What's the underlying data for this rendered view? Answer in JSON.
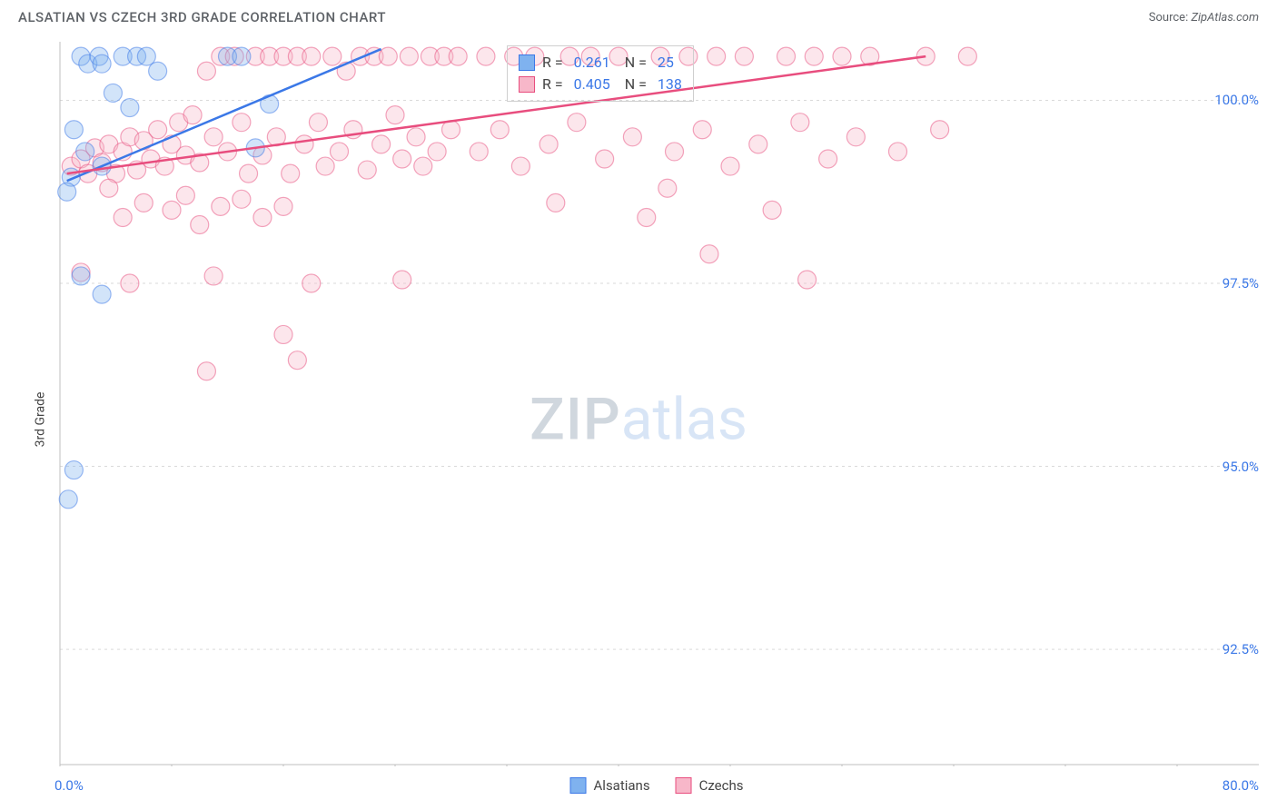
{
  "header": {
    "title": "ALSATIAN VS CZECH 3RD GRADE CORRELATION CHART",
    "source_prefix": "Source: ",
    "source_link": "ZipAtlas.com"
  },
  "ylabel": "3rd Grade",
  "watermark": {
    "part1": "ZIP",
    "part2": "atlas"
  },
  "chart": {
    "type": "scatter",
    "xlim": [
      0,
      80
    ],
    "ylim": [
      91.0,
      100.8
    ],
    "x_left_label": "0.0%",
    "x_right_label": "80.0%",
    "xtick_positions": [
      0,
      8,
      16,
      24,
      32,
      40,
      48,
      56,
      64,
      72,
      80
    ],
    "ytick_labels": [
      {
        "value": 100.0,
        "label": "100.0%"
      },
      {
        "value": 97.5,
        "label": "97.5%"
      },
      {
        "value": 95.0,
        "label": "95.0%"
      },
      {
        "value": 92.5,
        "label": "92.5%"
      }
    ],
    "grid_color": "#d9d9d9",
    "axis_color": "#bfbfbf",
    "background_color": "#ffffff",
    "marker_radius": 10,
    "marker_opacity": 0.35,
    "series": [
      {
        "name": "Alsatians",
        "color_fill": "#7fb2ef",
        "color_stroke": "#3b78e7",
        "trend": {
          "x1": 0.5,
          "y1": 98.9,
          "x2": 23,
          "y2": 100.7
        },
        "points": [
          [
            1.5,
            100.6
          ],
          [
            2.0,
            100.5
          ],
          [
            2.8,
            100.6
          ],
          [
            3.0,
            100.5
          ],
          [
            3.8,
            100.1
          ],
          [
            4.5,
            100.6
          ],
          [
            5.5,
            100.6
          ],
          [
            5.0,
            99.9
          ],
          [
            6.2,
            100.6
          ],
          [
            7.0,
            100.4
          ],
          [
            1.0,
            99.6
          ],
          [
            1.8,
            99.3
          ],
          [
            3.0,
            99.1
          ],
          [
            0.8,
            98.95
          ],
          [
            0.5,
            98.75
          ],
          [
            1.5,
            97.6
          ],
          [
            3.0,
            97.35
          ],
          [
            1.0,
            94.95
          ],
          [
            0.6,
            94.55
          ],
          [
            12.0,
            100.6
          ],
          [
            13.0,
            100.6
          ],
          [
            14.0,
            99.35
          ],
          [
            15.0,
            99.95
          ]
        ]
      },
      {
        "name": "Czechs",
        "color_fill": "#f7b7c9",
        "color_stroke": "#e84d7e",
        "trend": {
          "x1": 0.5,
          "y1": 99.0,
          "x2": 62,
          "y2": 100.6
        },
        "points": [
          [
            0.8,
            99.1
          ],
          [
            1.5,
            99.2
          ],
          [
            2.0,
            99.0
          ],
          [
            2.5,
            99.35
          ],
          [
            3.0,
            99.15
          ],
          [
            3.5,
            99.4
          ],
          [
            4.0,
            99.0
          ],
          [
            4.5,
            99.3
          ],
          [
            5.0,
            99.5
          ],
          [
            5.5,
            99.05
          ],
          [
            6.0,
            99.45
          ],
          [
            6.5,
            99.2
          ],
          [
            7.0,
            99.6
          ],
          [
            7.5,
            99.1
          ],
          [
            8.0,
            99.4
          ],
          [
            8.5,
            99.7
          ],
          [
            9.0,
            99.25
          ],
          [
            9.5,
            99.8
          ],
          [
            10.0,
            99.15
          ],
          [
            10.5,
            100.4
          ],
          [
            11.0,
            99.5
          ],
          [
            11.5,
            100.6
          ],
          [
            12.0,
            99.3
          ],
          [
            12.5,
            100.6
          ],
          [
            13.0,
            99.7
          ],
          [
            13.5,
            99.0
          ],
          [
            14.0,
            100.6
          ],
          [
            14.5,
            99.25
          ],
          [
            15.0,
            100.6
          ],
          [
            15.5,
            99.5
          ],
          [
            16.0,
            100.6
          ],
          [
            16.5,
            99.0
          ],
          [
            17.0,
            100.6
          ],
          [
            17.5,
            99.4
          ],
          [
            18.0,
            100.6
          ],
          [
            18.5,
            99.7
          ],
          [
            19.0,
            99.1
          ],
          [
            19.5,
            100.6
          ],
          [
            20.0,
            99.3
          ],
          [
            20.5,
            100.4
          ],
          [
            21.0,
            99.6
          ],
          [
            21.5,
            100.6
          ],
          [
            22.0,
            99.05
          ],
          [
            22.5,
            100.6
          ],
          [
            23.0,
            99.4
          ],
          [
            23.5,
            100.6
          ],
          [
            24.0,
            99.8
          ],
          [
            24.5,
            99.2
          ],
          [
            25.0,
            100.6
          ],
          [
            25.5,
            99.5
          ],
          [
            26.0,
            99.1
          ],
          [
            26.5,
            100.6
          ],
          [
            27.0,
            99.3
          ],
          [
            27.5,
            100.6
          ],
          [
            28.0,
            99.6
          ],
          [
            28.5,
            100.6
          ],
          [
            1.5,
            97.65
          ],
          [
            3.5,
            98.8
          ],
          [
            4.5,
            98.4
          ],
          [
            6.0,
            98.6
          ],
          [
            8.0,
            98.5
          ],
          [
            9.0,
            98.7
          ],
          [
            10.0,
            98.3
          ],
          [
            11.5,
            98.55
          ],
          [
            13.0,
            98.65
          ],
          [
            14.5,
            98.4
          ],
          [
            16.0,
            98.55
          ],
          [
            5.0,
            97.5
          ],
          [
            11.0,
            97.6
          ],
          [
            18.0,
            97.5
          ],
          [
            24.5,
            97.55
          ],
          [
            10.5,
            96.3
          ],
          [
            17.0,
            96.45
          ],
          [
            16.0,
            96.8
          ],
          [
            30.0,
            99.3
          ],
          [
            30.5,
            100.6
          ],
          [
            31.5,
            99.6
          ],
          [
            32.5,
            100.6
          ],
          [
            33.0,
            99.1
          ],
          [
            34.0,
            100.6
          ],
          [
            35.0,
            99.4
          ],
          [
            35.5,
            98.6
          ],
          [
            36.5,
            100.6
          ],
          [
            37.0,
            99.7
          ],
          [
            38.0,
            100.6
          ],
          [
            39.0,
            99.2
          ],
          [
            40.0,
            100.6
          ],
          [
            41.0,
            99.5
          ],
          [
            42.0,
            98.4
          ],
          [
            43.0,
            100.6
          ],
          [
            43.5,
            98.8
          ],
          [
            44.0,
            99.3
          ],
          [
            45.0,
            100.6
          ],
          [
            46.0,
            99.6
          ],
          [
            46.5,
            97.9
          ],
          [
            47.0,
            100.6
          ],
          [
            48.0,
            99.1
          ],
          [
            49.0,
            100.6
          ],
          [
            50.0,
            99.4
          ],
          [
            51.0,
            98.5
          ],
          [
            52.0,
            100.6
          ],
          [
            53.0,
            99.7
          ],
          [
            53.5,
            97.55
          ],
          [
            54.0,
            100.6
          ],
          [
            55.0,
            99.2
          ],
          [
            56.0,
            100.6
          ],
          [
            57.0,
            99.5
          ],
          [
            58.0,
            100.6
          ],
          [
            60.0,
            99.3
          ],
          [
            62.0,
            100.6
          ],
          [
            63.0,
            99.6
          ],
          [
            65.0,
            100.6
          ]
        ]
      }
    ]
  },
  "stats_box": {
    "rows": [
      {
        "series_index": 0,
        "r_label": "R =",
        "r_value": "0.261",
        "n_label": "N =",
        "n_value": "25"
      },
      {
        "series_index": 1,
        "r_label": "R =",
        "r_value": "0.405",
        "n_label": "N =",
        "n_value": "138"
      }
    ]
  },
  "legend_bottom": [
    {
      "series_index": 0,
      "label": "Alsatians"
    },
    {
      "series_index": 1,
      "label": "Czechs"
    }
  ]
}
